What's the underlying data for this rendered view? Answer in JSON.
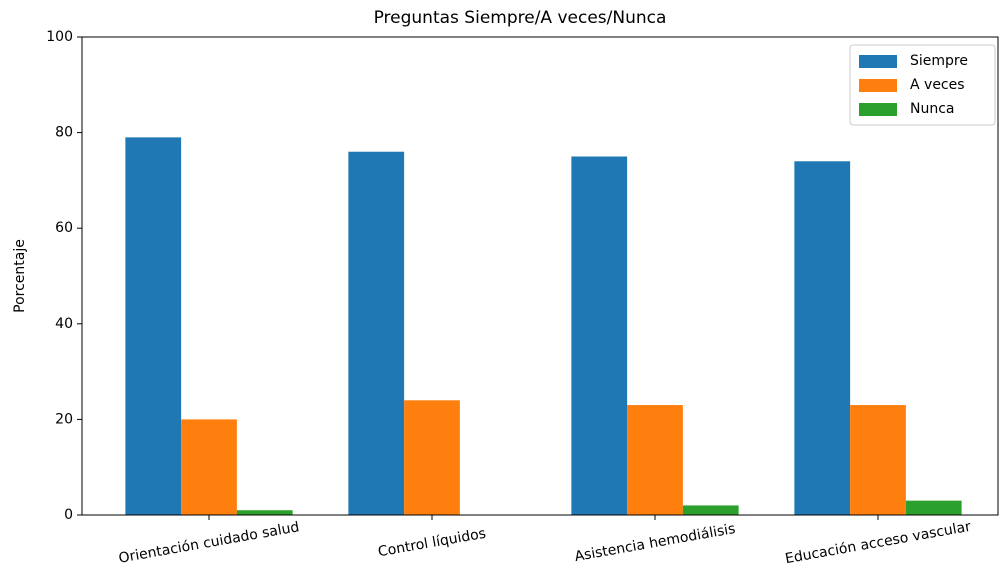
{
  "chart_data": {
    "type": "bar",
    "title": "Preguntas Siempre/A veces/Nunca",
    "y_label": "Porcentaje",
    "categories": [
      "Orientación cuidado salud",
      "Control líquidos",
      "Asistencia hemodiálisis",
      "Educación acceso vascular"
    ],
    "series": [
      {
        "name": "Siempre",
        "color": "#1f77b4",
        "values": [
          79,
          76,
          75,
          74
        ]
      },
      {
        "name": "A veces",
        "color": "#ff7f0e",
        "values": [
          20,
          24,
          23,
          23
        ]
      },
      {
        "name": "Nunca",
        "color": "#2ca02c",
        "values": [
          1,
          0,
          2,
          3
        ]
      }
    ],
    "ylim": [
      0,
      100
    ],
    "yticks": [
      0,
      20,
      40,
      60,
      80,
      100
    ],
    "legend": "upper right"
  }
}
